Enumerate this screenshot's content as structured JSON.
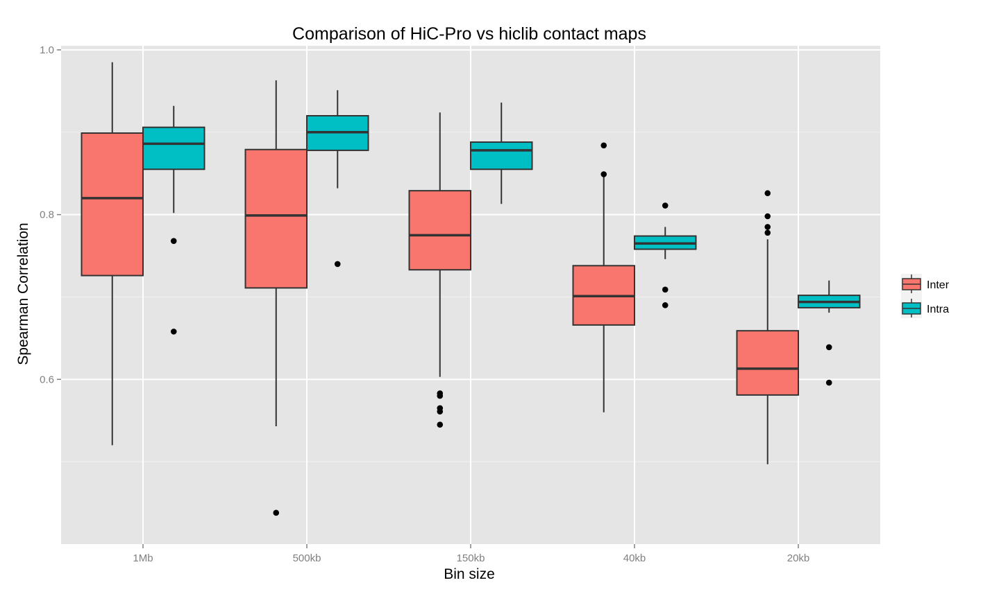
{
  "chart_data": {
    "type": "boxplot",
    "title": "Comparison of HiC-Pro vs hiclib contact maps",
    "xlabel": "Bin size",
    "ylabel": "Spearman Correlation",
    "categories": [
      "1Mb",
      "500kb",
      "150kb",
      "40kb",
      "20kb"
    ],
    "ylim": [
      0.4,
      1.005
    ],
    "yticks": [
      0.6,
      0.8,
      1.0
    ],
    "ytick_labels": [
      "0.6",
      "0.8",
      "1.0"
    ],
    "yminor": [
      0.5,
      0.7,
      0.9
    ],
    "grid": true,
    "legend_position": "right",
    "series": [
      {
        "name": "Inter",
        "color": "#F8766D",
        "boxes": [
          {
            "category": "1Mb",
            "whisker_low": 0.52,
            "q1": 0.726,
            "median": 0.82,
            "q3": 0.899,
            "whisker_high": 0.985,
            "outliers": []
          },
          {
            "category": "500kb",
            "whisker_low": 0.543,
            "q1": 0.711,
            "median": 0.799,
            "q3": 0.879,
            "whisker_high": 0.963,
            "outliers": [
              0.438
            ]
          },
          {
            "category": "150kb",
            "whisker_low": 0.603,
            "q1": 0.733,
            "median": 0.775,
            "q3": 0.829,
            "whisker_high": 0.924,
            "outliers": [
              0.583,
              0.58,
              0.565,
              0.561,
              0.545
            ]
          },
          {
            "category": "40kb",
            "whisker_low": 0.56,
            "q1": 0.666,
            "median": 0.701,
            "q3": 0.738,
            "whisker_high": 0.85,
            "outliers": [
              0.884,
              0.849
            ]
          },
          {
            "category": "20kb",
            "whisker_low": 0.497,
            "q1": 0.581,
            "median": 0.613,
            "q3": 0.659,
            "whisker_high": 0.77,
            "outliers": [
              0.826,
              0.798,
              0.785,
              0.778
            ]
          }
        ]
      },
      {
        "name": "Intra",
        "color": "#00BFC4",
        "boxes": [
          {
            "category": "1Mb",
            "whisker_low": 0.802,
            "q1": 0.855,
            "median": 0.886,
            "q3": 0.906,
            "whisker_high": 0.932,
            "outliers": [
              0.768,
              0.658
            ]
          },
          {
            "category": "500kb",
            "whisker_low": 0.832,
            "q1": 0.878,
            "median": 0.9,
            "q3": 0.92,
            "whisker_high": 0.951,
            "outliers": [
              0.74
            ]
          },
          {
            "category": "150kb",
            "whisker_low": 0.813,
            "q1": 0.855,
            "median": 0.878,
            "q3": 0.888,
            "whisker_high": 0.936,
            "outliers": []
          },
          {
            "category": "40kb",
            "whisker_low": 0.746,
            "q1": 0.758,
            "median": 0.765,
            "q3": 0.774,
            "whisker_high": 0.785,
            "outliers": [
              0.811,
              0.709,
              0.69
            ]
          },
          {
            "category": "20kb",
            "whisker_low": 0.681,
            "q1": 0.687,
            "median": 0.694,
            "q3": 0.702,
            "whisker_high": 0.72,
            "outliers": [
              0.639,
              0.596
            ]
          }
        ]
      }
    ]
  },
  "style": {
    "panel_background": "#E5E5E5",
    "grid_color": "#FFFFFF",
    "box_stroke": "#333333",
    "point_color": "#000000"
  }
}
